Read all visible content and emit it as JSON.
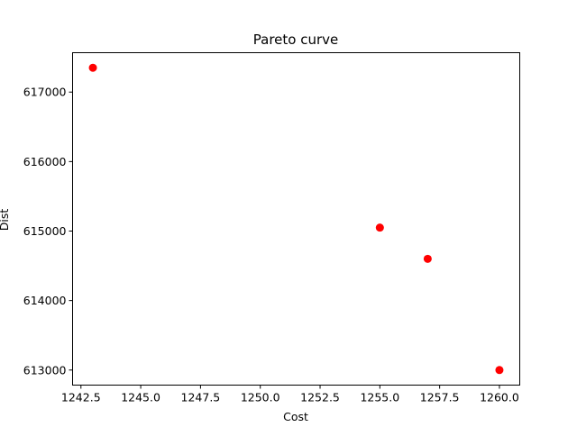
{
  "chart_data": {
    "type": "scatter",
    "title": "Pareto curve",
    "xlabel": "Cost",
    "ylabel": "Dist",
    "xlim": [
      1242.15,
      1260.85
    ],
    "ylim": [
      612783.25,
      617566.75
    ],
    "x_ticks": [
      1242.5,
      1245.0,
      1247.5,
      1250.0,
      1252.5,
      1255.0,
      1257.5,
      1260.0
    ],
    "x_tick_labels": [
      "1242.5",
      "1245.0",
      "1247.5",
      "1250.0",
      "1252.5",
      "1255.0",
      "1257.5",
      "1260.0"
    ],
    "y_ticks": [
      613000,
      614000,
      615000,
      616000,
      617000
    ],
    "y_tick_labels": [
      "613000",
      "614000",
      "615000",
      "616000",
      "617000"
    ],
    "grid": false,
    "legend": "none",
    "series": [
      {
        "color": "#ff0000",
        "marker": "circle",
        "points": [
          {
            "x": 1243.0,
            "y": 617350
          },
          {
            "x": 1255.0,
            "y": 615050
          },
          {
            "x": 1257.0,
            "y": 614600
          },
          {
            "x": 1260.0,
            "y": 613000
          }
        ]
      }
    ]
  }
}
